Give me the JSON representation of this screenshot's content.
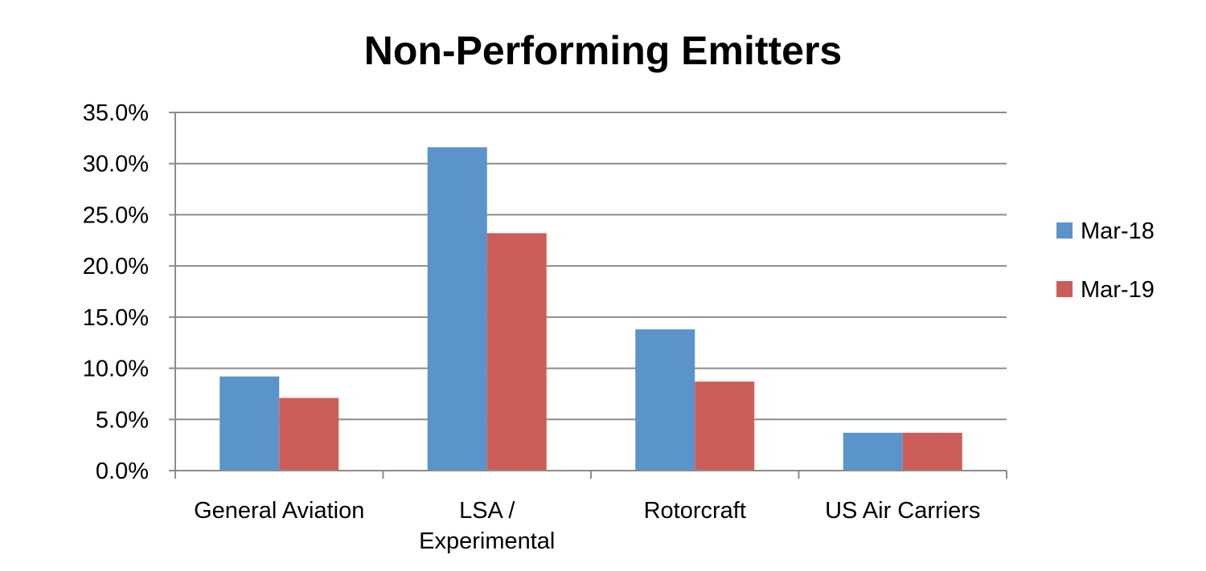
{
  "chart_data": {
    "type": "bar",
    "title": "Non-Performing Emitters",
    "categories": [
      [
        "General Aviation"
      ],
      [
        "LSA /",
        "Experimental"
      ],
      [
        "Rotorcraft"
      ],
      [
        "US Air Carriers"
      ]
    ],
    "series": [
      {
        "name": "Mar-18",
        "color": "#5B93CB",
        "values": [
          9.2,
          31.6,
          13.8,
          3.7
        ]
      },
      {
        "name": "Mar-19",
        "color": "#CD5D58",
        "values": [
          7.1,
          23.2,
          8.7,
          3.7
        ]
      }
    ],
    "yticks": [
      "0.0%",
      "5.0%",
      "10.0%",
      "15.0%",
      "20.0%",
      "25.0%",
      "30.0%",
      "35.0%"
    ],
    "ylim": [
      0,
      35
    ],
    "grid": true,
    "legend_position": "right",
    "colors": {
      "grid": "#8c8c8c",
      "axis": "#8c8c8c",
      "text": "#000000"
    }
  }
}
